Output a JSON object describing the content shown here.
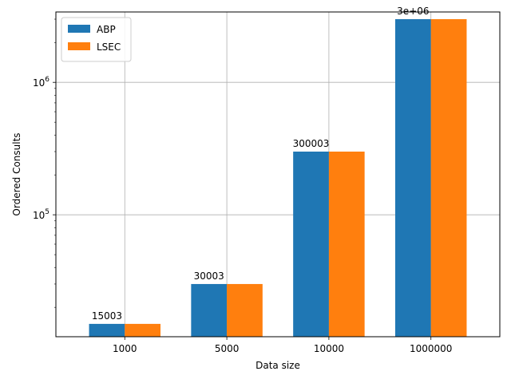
{
  "chart_data": {
    "type": "bar",
    "xlabel": "Data size",
    "ylabel": "Ordered Consults",
    "yscale": "log",
    "ylim": [
      12000,
      3400000
    ],
    "grid": true,
    "legend_position": "top-left",
    "categories": [
      "1000",
      "5000",
      "10000",
      "1000000"
    ],
    "series": [
      {
        "name": "ABP",
        "color": "#1f77b4",
        "values": [
          15003,
          30003,
          300003,
          3000003
        ]
      },
      {
        "name": "LSEC",
        "color": "#ff7f0e",
        "values": [
          15003,
          30003,
          300003,
          3000003
        ]
      }
    ],
    "bar_labels": [
      "15003",
      "30003",
      "300003",
      "3e+06"
    ],
    "y_major_ticks": [
      {
        "value": 100000,
        "base": "10",
        "exp": "5"
      },
      {
        "value": 1000000,
        "base": "10",
        "exp": "6"
      }
    ]
  }
}
